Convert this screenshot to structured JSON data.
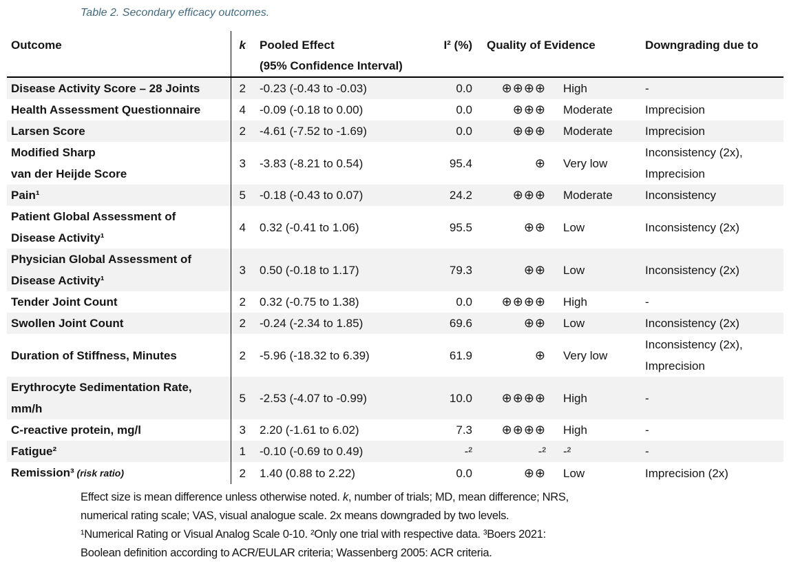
{
  "title": "Table 2. Secondary efficacy outcomes.",
  "colors": {
    "title_text": "#44697d",
    "row_stripe": "#f2f2f2",
    "border": "#000000",
    "body_text": "#151515"
  },
  "table": {
    "headers": {
      "outcome": "Outcome",
      "k": "k",
      "pooled_effect_line1": "Pooled Effect",
      "pooled_effect_line2": "(95% Confidence Interval)",
      "i2": "I² (%)",
      "quality": "Quality of Evidence",
      "downgrading": "Downgrading due to"
    },
    "rows": [
      {
        "outcome": "Disease Activity Score – 28 Joints",
        "note": "",
        "k": "2",
        "pooled": "-0.23 (-0.43 to -0.03)",
        "i2": "0.0",
        "circles": "⊕⊕⊕⊕",
        "quality": "High",
        "downgrading": "-"
      },
      {
        "outcome": "Health Assessment Questionnaire",
        "note": "",
        "k": "4",
        "pooled": "-0.09 (-0.18 to 0.00)",
        "i2": "0.0",
        "circles": "⊕⊕⊕",
        "quality": "Moderate",
        "downgrading": "Imprecision"
      },
      {
        "outcome": "Larsen Score",
        "note": "",
        "k": "2",
        "pooled": "-4.61 (-7.52 to -1.69)",
        "i2": "0.0",
        "circles": "⊕⊕⊕",
        "quality": "Moderate",
        "downgrading": "Imprecision"
      },
      {
        "outcome": "Modified Sharp\nvan der Heijde Score",
        "note": "",
        "k": "3",
        "pooled": "-3.83 (-8.21 to 0.54)",
        "i2": "95.4",
        "circles": "⊕",
        "quality": "Very low",
        "downgrading": "Inconsistency (2x),\nImprecision"
      },
      {
        "outcome": "Pain¹",
        "note": "",
        "k": "5",
        "pooled": "-0.18 (-0.43 to 0.07)",
        "i2": "24.2",
        "circles": "⊕⊕⊕",
        "quality": "Moderate",
        "downgrading": "Inconsistency"
      },
      {
        "outcome": "Patient Global Assessment of\nDisease Activity¹",
        "note": "",
        "k": "4",
        "pooled": "0.32 (-0.41 to 1.06)",
        "i2": "95.5",
        "circles": "⊕⊕",
        "quality": "Low",
        "downgrading": "Inconsistency (2x)"
      },
      {
        "outcome": "Physician Global Assessment of\nDisease Activity¹",
        "note": "",
        "k": "3",
        "pooled": "0.50 (-0.18 to 1.17)",
        "i2": "79.3",
        "circles": "⊕⊕",
        "quality": "Low",
        "downgrading": "Inconsistency (2x)"
      },
      {
        "outcome": "Tender Joint Count",
        "note": "",
        "k": "2",
        "pooled": "0.32 (-0.75 to 1.38)",
        "i2": "0.0",
        "circles": "⊕⊕⊕⊕",
        "quality": "High",
        "downgrading": "-"
      },
      {
        "outcome": "Swollen Joint Count",
        "note": "",
        "k": "2",
        "pooled": "-0.24 (-2.34 to 1.85)",
        "i2": "69.6",
        "circles": "⊕⊕",
        "quality": "Low",
        "downgrading": "Inconsistency (2x)"
      },
      {
        "outcome": "Duration of Stiffness, Minutes",
        "note": "",
        "k": "2",
        "pooled": "-5.96 (-18.32 to 6.39)",
        "i2": "61.9",
        "circles": "⊕",
        "quality": "Very low",
        "downgrading": "Inconsistency (2x),\nImprecision"
      },
      {
        "outcome": "Erythrocyte Sedimentation Rate,\nmm/h",
        "note": "",
        "k": "5",
        "pooled": "-2.53 (-4.07 to -0.99)",
        "i2": "10.0",
        "circles": "⊕⊕⊕⊕",
        "quality": "High",
        "downgrading": "-"
      },
      {
        "outcome": "C-reactive protein, mg/l",
        "note": "",
        "k": "3",
        "pooled": "2.20 (-1.61 to 6.02)",
        "i2": "7.3",
        "circles": "⊕⊕⊕⊕",
        "quality": "High",
        "downgrading": "-"
      },
      {
        "outcome": "Fatigue²",
        "note": "",
        "k": "1",
        "pooled": "-0.10 (-0.69 to 0.49)",
        "i2": "-²",
        "circles": "-²",
        "quality": "-²",
        "downgrading": "-"
      },
      {
        "outcome": "Remission³",
        "note": "(risk ratio)",
        "k": "2",
        "pooled": "1.40 (0.88 to 2.22)",
        "i2": "0.0",
        "circles": "⊕⊕",
        "quality": "Low",
        "downgrading": "Imprecision (2x)"
      }
    ]
  },
  "footnotes": {
    "lines": [
      [
        {
          "text": "Effect size is mean difference unless otherwise noted. "
        },
        {
          "text": "k",
          "italic": true
        },
        {
          "text": ", number of trials; MD, mean difference; NRS,"
        }
      ],
      [
        {
          "text": "numerical rating scale; VAS, visual analogue scale. 2x means downgraded by two levels."
        }
      ],
      [
        {
          "text": "¹Numerical Rating or Visual Analog Scale 0-10. ²Only one trial with respective data. ³Boers 2021:"
        }
      ],
      [
        {
          "text": "Boolean definition according to ACR/EULAR criteria; Wassenberg 2005: ACR criteria."
        }
      ]
    ]
  }
}
